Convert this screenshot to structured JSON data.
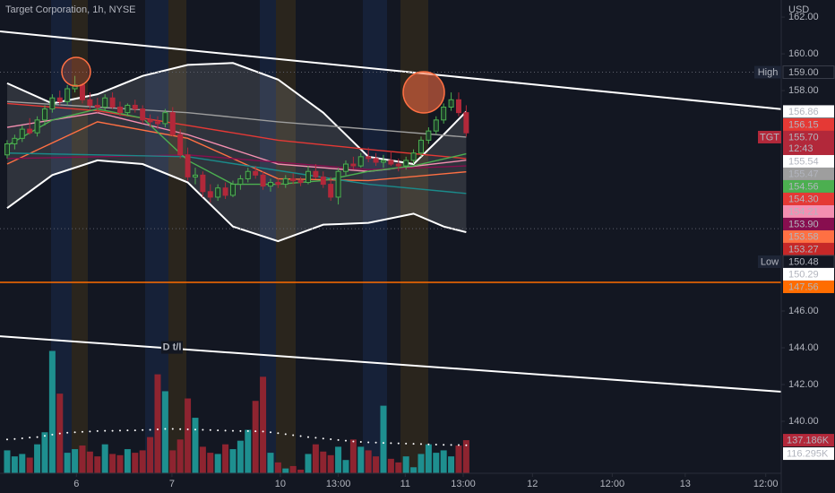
{
  "chart_data": {
    "type": "candlestick",
    "title": "Target Corporation, 1h, NYSE",
    "currency": "USD",
    "background": "#131722",
    "text_color": "#b2b5be",
    "up_color": "#4caf50",
    "down_color": "#b2283a",
    "volume_up_color": "#1e8f8f",
    "volume_down_color": "#8e2430",
    "xlim": [
      -0.95,
      102.86
    ],
    "xticks": [
      {
        "value": 9.2,
        "label": "6"
      },
      {
        "value": 21.9,
        "label": "7"
      },
      {
        "value": 36.3,
        "label": "10"
      },
      {
        "value": 44.0,
        "label": "13:00"
      },
      {
        "value": 52.9,
        "label": "11"
      },
      {
        "value": 60.6,
        "label": "13:00"
      },
      {
        "value": 69.8,
        "label": "12"
      },
      {
        "value": 80.4,
        "label": "12:00"
      },
      {
        "value": 90.1,
        "label": "13"
      },
      {
        "value": 100.8,
        "label": "12:00"
      }
    ],
    "ylim": [
      137.17,
      162.93
    ],
    "yticks": [
      {
        "value": 162,
        "label": "162.00"
      },
      {
        "value": 160,
        "label": "160.00"
      },
      {
        "value": 158,
        "label": "158.00"
      },
      {
        "value": 146,
        "label": "146.00"
      },
      {
        "value": 144,
        "label": "144.00"
      },
      {
        "value": 142,
        "label": "142.00"
      },
      {
        "value": 140,
        "label": "140.00"
      }
    ],
    "open": [
      154.5,
      155.1,
      155.4,
      155.9,
      155.7,
      156.4,
      157.0,
      157.6,
      157.4,
      158.1,
      158.3,
      157.5,
      157.2,
      157.1,
      157.6,
      157.1,
      156.8,
      157.2,
      157.0,
      156.4,
      156.3,
      156.2,
      156.8,
      155.6,
      154.5,
      153.3,
      153.4,
      152.5,
      152.2,
      152.7,
      152.3,
      152.9,
      153.2,
      153.6,
      153.4,
      152.8,
      153.0,
      152.9,
      153.2,
      153.1,
      153.0,
      153.6,
      153.3,
      152.9,
      152.2,
      153.6,
      154.0,
      153.9,
      154.4,
      154.3,
      154.1,
      154.2,
      154.0,
      153.9,
      154.2,
      154.6,
      155.3,
      155.8,
      156.4,
      157.1,
      157.5,
      156.8
    ],
    "high": [
      155.3,
      155.6,
      156.1,
      156.5,
      156.6,
      157.2,
      157.8,
      158.0,
      158.3,
      158.8,
      158.4,
      157.9,
      157.6,
      157.8,
      157.9,
      157.4,
      157.3,
      157.5,
      157.2,
      156.7,
      156.6,
      157.0,
      157.1,
      155.9,
      154.9,
      153.8,
      153.6,
      152.9,
      152.9,
      153.0,
      153.1,
      153.4,
      153.8,
      153.9,
      153.6,
      153.2,
      153.2,
      153.4,
      153.5,
      153.3,
      153.9,
      154.0,
      153.6,
      153.3,
      153.8,
      154.2,
      154.4,
      154.6,
      154.9,
      154.6,
      154.5,
      154.7,
      154.3,
      154.4,
      154.8,
      155.5,
      156.0,
      156.6,
      157.3,
      157.9,
      157.9,
      157.2
    ],
    "low": [
      154.3,
      154.8,
      155.2,
      155.6,
      155.5,
      156.1,
      156.8,
      157.2,
      157.2,
      157.9,
      157.3,
      157.0,
      156.8,
      156.9,
      157.0,
      156.6,
      156.6,
      156.8,
      156.2,
      156.0,
      155.9,
      156.0,
      155.5,
      154.3,
      153.1,
      152.9,
      152.2,
      151.9,
      152.0,
      152.1,
      152.2,
      152.6,
      153.0,
      153.2,
      152.6,
      152.5,
      152.7,
      152.7,
      152.9,
      152.8,
      152.9,
      153.2,
      152.7,
      152.0,
      151.8,
      153.4,
      153.7,
      153.8,
      154.1,
      153.9,
      153.8,
      153.9,
      153.6,
      153.7,
      154.0,
      154.4,
      155.1,
      155.6,
      156.2,
      156.9,
      156.6,
      155.5
    ],
    "close": [
      155.1,
      155.4,
      155.9,
      155.7,
      156.4,
      157.0,
      157.6,
      157.4,
      158.1,
      158.3,
      157.5,
      157.2,
      157.1,
      157.6,
      157.1,
      156.8,
      157.2,
      157.0,
      156.4,
      156.3,
      156.2,
      156.8,
      155.6,
      154.5,
      153.3,
      153.4,
      152.5,
      152.2,
      152.7,
      152.3,
      152.9,
      153.2,
      153.6,
      153.4,
      152.8,
      153.0,
      152.9,
      153.2,
      153.1,
      153.0,
      153.6,
      153.3,
      152.9,
      152.2,
      153.6,
      154.0,
      153.9,
      154.4,
      154.3,
      154.1,
      154.2,
      154.0,
      153.9,
      154.2,
      154.6,
      155.3,
      155.8,
      156.4,
      157.1,
      157.5,
      156.8,
      155.7
    ],
    "volume": [
      95000,
      70000,
      80000,
      65000,
      120000,
      170000,
      507000,
      330000,
      85000,
      100000,
      115000,
      90000,
      70000,
      120000,
      80000,
      75000,
      100000,
      85000,
      95000,
      150000,
      410000,
      340000,
      95000,
      140000,
      310000,
      230000,
      110000,
      85000,
      80000,
      120000,
      100000,
      135000,
      180000,
      300000,
      400000,
      85000,
      45000,
      20000,
      30000,
      15000,
      80000,
      120000,
      90000,
      75000,
      110000,
      55000,
      140000,
      110000,
      95000,
      70000,
      280000,
      60000,
      45000,
      70000,
      25000,
      80000,
      120000,
      85000,
      95000,
      70000,
      115000,
      137186
    ],
    "volume_ma": [
      140000,
      142000,
      145000,
      148000,
      150000,
      155000,
      160000,
      165000,
      168000,
      170000,
      172000,
      173000,
      175000,
      176000,
      176000,
      177000,
      178000,
      178000,
      179000,
      180000,
      182000,
      184000,
      184000,
      183000,
      182000,
      181000,
      180000,
      179000,
      178000,
      177000,
      176000,
      175000,
      175000,
      174000,
      173000,
      170000,
      166000,
      162000,
      158000,
      154000,
      150000,
      147000,
      144000,
      141000,
      138000,
      135000,
      132000,
      130000,
      128000,
      127000,
      126000,
      125000,
      124000,
      123000,
      122000,
      121000,
      120000,
      119000,
      118000,
      117500,
      117000,
      116295
    ],
    "volume_lim": [
      0,
      520000
    ],
    "volume_ma_color": "#ffffff",
    "bands": {
      "color": "#ffffff",
      "fill": "rgba(200,200,200,0.16)",
      "x": [
        0,
        6,
        12,
        18,
        24,
        30,
        36,
        42,
        48,
        54,
        58,
        61
      ],
      "upper": [
        158.4,
        157.3,
        157.8,
        158.8,
        159.4,
        159.5,
        158.6,
        156.8,
        154.4,
        154.0,
        155.6,
        156.86
      ],
      "lower": [
        151.6,
        153.4,
        154.2,
        154.0,
        153.0,
        150.6,
        149.8,
        150.7,
        150.8,
        151.3,
        150.6,
        150.29
      ]
    },
    "indicators": [
      {
        "color": "#9e9e9e",
        "x": [
          0,
          12,
          24,
          36,
          48,
          61
        ],
        "values": [
          157.4,
          157.1,
          156.8,
          156.3,
          155.9,
          155.47
        ]
      },
      {
        "color": "#e53935",
        "x": [
          0,
          12,
          24,
          36,
          48,
          61
        ],
        "values": [
          157.3,
          156.9,
          156.1,
          155.3,
          154.8,
          154.3
        ]
      },
      {
        "color": "#ff7043",
        "x": [
          0,
          12,
          24,
          36,
          48,
          61
        ],
        "values": [
          154.0,
          156.3,
          155.4,
          153.2,
          153.1,
          153.58
        ]
      },
      {
        "color": "#f48fb1",
        "x": [
          0,
          12,
          24,
          36,
          48,
          61
        ],
        "values": [
          156.0,
          156.8,
          155.6,
          154.0,
          153.6,
          154.21
        ]
      },
      {
        "color": "#880e4f",
        "x": [
          0,
          24,
          48,
          61
        ],
        "values": [
          154.3,
          154.5,
          153.7,
          153.9
        ]
      },
      {
        "color": "#1b8a8a",
        "x": [
          0,
          24,
          48,
          61
        ],
        "values": [
          154.6,
          154.4,
          152.9,
          152.4
        ]
      },
      {
        "color": "#4caf50",
        "x": [
          0,
          6,
          12,
          18,
          24,
          30,
          36,
          42,
          48,
          54,
          61
        ],
        "values": [
          155.0,
          156.4,
          157.0,
          156.5,
          154.2,
          152.9,
          152.9,
          153.1,
          153.6,
          153.9,
          154.56
        ]
      }
    ],
    "trend_lines": [
      {
        "color": "#ffffff",
        "x": [
          -0.95,
          102.86
        ],
        "values": [
          161.22,
          156.99
        ]
      },
      {
        "color": "#ffffff",
        "label": "D t/l",
        "x": [
          -0.95,
          102.86
        ],
        "values": [
          144.63,
          141.61
        ]
      }
    ],
    "hline": {
      "value": 147.56,
      "color": "#ff6d00"
    },
    "price_labels": [
      {
        "name": "High",
        "value": 159,
        "label": "159.00",
        "color": "#131722",
        "text_color": "#ffffff",
        "dotted": true
      },
      {
        "value": 156.86,
        "color": "#ffffff",
        "text_color": "#131722"
      },
      {
        "value": 156.15,
        "color": "#e53935",
        "text_color": "#ffffff"
      },
      {
        "name": "TGT",
        "value": 155.7,
        "label": "155.70",
        "countdown": "12:43",
        "color": "#b2283a",
        "text_color": "#ffffff"
      },
      {
        "value": 155.54,
        "color": "#ffffff",
        "text_color": "#131722"
      },
      {
        "value": 155.47,
        "color": "#9e9e9e",
        "text_color": "#ffffff"
      },
      {
        "value": 154.56,
        "color": "#4caf50",
        "text_color": "#131722"
      },
      {
        "value": 154.3,
        "label": "154.30",
        "color": "#e53935",
        "text_color": "#ffffff"
      },
      {
        "value": 154.21,
        "color": "#f48fb1",
        "text_color": "#131722"
      },
      {
        "value": 153.9,
        "label": "153.90",
        "color": "#880e4f",
        "text_color": "#ffffff"
      },
      {
        "value": 153.58,
        "color": "#ff7043",
        "text_color": "#ffffff"
      },
      {
        "value": 153.27,
        "color": "#c62828",
        "text_color": "#ffffff"
      },
      {
        "name": "Low",
        "value": 150.48,
        "color": "#131722",
        "text_color": "#ffffff",
        "dotted": true
      },
      {
        "value": 150.29,
        "color": "#ffffff",
        "text_color": "#131722"
      },
      {
        "value": 147.56,
        "color": "#ff6d00",
        "text_color": "#ffffff"
      }
    ],
    "volume_labels": [
      {
        "value": 137186,
        "label": "137.186K",
        "color": "#b2283a",
        "text_color": "#ffffff"
      },
      {
        "value": 116295,
        "label": "116.295K",
        "color": "#ffffff",
        "text_color": "#131722"
      }
    ]
  }
}
